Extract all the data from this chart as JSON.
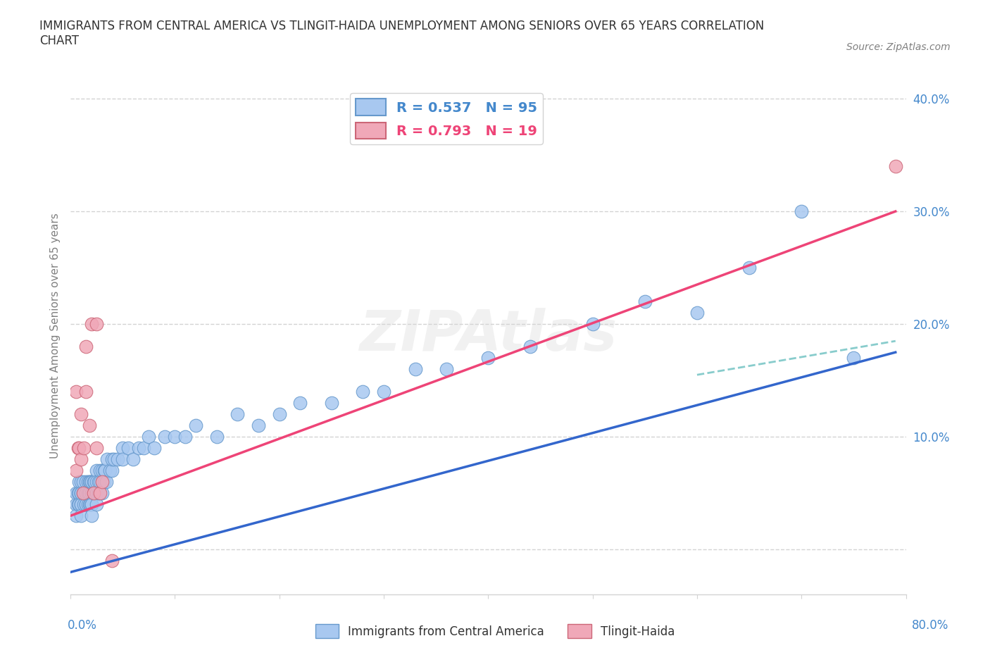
{
  "title": "IMMIGRANTS FROM CENTRAL AMERICA VS TLINGIT-HAIDA UNEMPLOYMENT AMONG SENIORS OVER 65 YEARS CORRELATION\nCHART",
  "source": "Source: ZipAtlas.com",
  "ylabel": "Unemployment Among Seniors over 65 years",
  "xlim": [
    0.0,
    0.8
  ],
  "ylim": [
    -0.04,
    0.42
  ],
  "blue_R": 0.537,
  "blue_N": 95,
  "pink_R": 0.793,
  "pink_N": 19,
  "blue_color": "#a8c8f0",
  "blue_edge": "#6699cc",
  "pink_color": "#f0a8b8",
  "pink_edge": "#cc6677",
  "trend_blue": "#3366cc",
  "trend_pink": "#ee4477",
  "trend_dashed": "#88cccc",
  "watermark": "ZIPAtlas",
  "yticks": [
    0.0,
    0.1,
    0.2,
    0.3,
    0.4
  ],
  "ytick_labels": [
    "",
    "10.0%",
    "20.0%",
    "30.0%",
    "40.0%"
  ],
  "blue_scatter_x": [
    0.005,
    0.005,
    0.005,
    0.007,
    0.007,
    0.008,
    0.008,
    0.008,
    0.01,
    0.01,
    0.01,
    0.01,
    0.01,
    0.01,
    0.01,
    0.012,
    0.012,
    0.013,
    0.013,
    0.015,
    0.015,
    0.015,
    0.015,
    0.015,
    0.017,
    0.017,
    0.017,
    0.018,
    0.018,
    0.018,
    0.018,
    0.019,
    0.019,
    0.02,
    0.02,
    0.02,
    0.02,
    0.02,
    0.02,
    0.02,
    0.022,
    0.022,
    0.023,
    0.023,
    0.025,
    0.025,
    0.025,
    0.025,
    0.027,
    0.027,
    0.028,
    0.028,
    0.03,
    0.03,
    0.03,
    0.032,
    0.032,
    0.033,
    0.034,
    0.035,
    0.038,
    0.04,
    0.04,
    0.042,
    0.045,
    0.05,
    0.05,
    0.055,
    0.06,
    0.065,
    0.07,
    0.075,
    0.08,
    0.09,
    0.1,
    0.11,
    0.12,
    0.14,
    0.16,
    0.18,
    0.2,
    0.22,
    0.25,
    0.28,
    0.3,
    0.33,
    0.36,
    0.4,
    0.44,
    0.5,
    0.55,
    0.6,
    0.65,
    0.7,
    0.75
  ],
  "blue_scatter_y": [
    0.04,
    0.05,
    0.03,
    0.05,
    0.04,
    0.06,
    0.05,
    0.04,
    0.05,
    0.04,
    0.06,
    0.05,
    0.04,
    0.03,
    0.05,
    0.05,
    0.06,
    0.04,
    0.05,
    0.05,
    0.06,
    0.04,
    0.05,
    0.04,
    0.05,
    0.06,
    0.04,
    0.06,
    0.05,
    0.04,
    0.05,
    0.06,
    0.04,
    0.06,
    0.05,
    0.04,
    0.05,
    0.06,
    0.04,
    0.03,
    0.06,
    0.05,
    0.06,
    0.05,
    0.07,
    0.06,
    0.05,
    0.04,
    0.06,
    0.05,
    0.07,
    0.06,
    0.06,
    0.07,
    0.05,
    0.07,
    0.06,
    0.07,
    0.06,
    0.08,
    0.07,
    0.07,
    0.08,
    0.08,
    0.08,
    0.09,
    0.08,
    0.09,
    0.08,
    0.09,
    0.09,
    0.1,
    0.09,
    0.1,
    0.1,
    0.1,
    0.11,
    0.1,
    0.12,
    0.11,
    0.12,
    0.13,
    0.13,
    0.14,
    0.14,
    0.16,
    0.16,
    0.17,
    0.18,
    0.2,
    0.22,
    0.21,
    0.25,
    0.3,
    0.17
  ],
  "pink_scatter_x": [
    0.005,
    0.005,
    0.007,
    0.008,
    0.01,
    0.01,
    0.012,
    0.013,
    0.015,
    0.015,
    0.018,
    0.02,
    0.022,
    0.025,
    0.025,
    0.028,
    0.03,
    0.04,
    0.79
  ],
  "pink_scatter_y": [
    0.14,
    0.07,
    0.09,
    0.09,
    0.08,
    0.12,
    0.05,
    0.09,
    0.14,
    0.18,
    0.11,
    0.2,
    0.05,
    0.2,
    0.09,
    0.05,
    0.06,
    -0.01,
    0.34
  ],
  "blue_trend_x": [
    0.0,
    0.79
  ],
  "blue_trend_y": [
    -0.02,
    0.175
  ],
  "pink_trend_x": [
    0.0,
    0.79
  ],
  "pink_trend_y": [
    0.03,
    0.3
  ],
  "dashed_trend_x": [
    0.6,
    0.79
  ],
  "dashed_trend_y": [
    0.155,
    0.185
  ]
}
